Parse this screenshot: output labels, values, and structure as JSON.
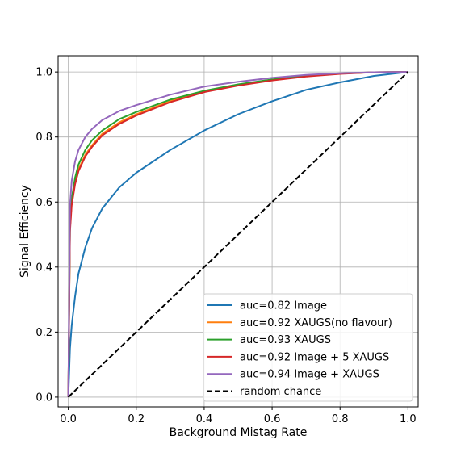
{
  "chart_data": {
    "type": "line",
    "title": "",
    "xlabel": "Background Mistag Rate",
    "ylabel": "Signal Efficiency",
    "xlim": [
      -0.03,
      1.03
    ],
    "ylim": [
      -0.03,
      1.05
    ],
    "x_ticks": [
      0.0,
      0.2,
      0.4,
      0.6,
      0.8,
      1.0
    ],
    "y_ticks": [
      0.0,
      0.2,
      0.4,
      0.6,
      0.8,
      1.0
    ],
    "x_tick_labels": [
      "0.0",
      "0.2",
      "0.4",
      "0.6",
      "0.8",
      "1.0"
    ],
    "y_tick_labels": [
      "0.0",
      "0.2",
      "0.4",
      "0.6",
      "0.8",
      "1.0"
    ],
    "grid": true,
    "legend_position": "lower-right",
    "x": [
      0.0,
      0.005,
      0.01,
      0.02,
      0.03,
      0.05,
      0.07,
      0.1,
      0.15,
      0.2,
      0.3,
      0.4,
      0.5,
      0.6,
      0.7,
      0.8,
      0.9,
      1.0
    ],
    "series": [
      {
        "name": "auc=0.82 Image",
        "color": "#1f77b4",
        "dash": "solid",
        "values": [
          0.0,
          0.15,
          0.22,
          0.31,
          0.38,
          0.46,
          0.52,
          0.58,
          0.645,
          0.69,
          0.76,
          0.82,
          0.87,
          0.91,
          0.945,
          0.968,
          0.988,
          1.0
        ]
      },
      {
        "name": "auc=0.92 XAUGS(no flavour)",
        "color": "#ff7f0e",
        "dash": "solid",
        "values": [
          0.0,
          0.52,
          0.6,
          0.665,
          0.7,
          0.745,
          0.775,
          0.81,
          0.845,
          0.87,
          0.91,
          0.94,
          0.96,
          0.975,
          0.987,
          0.995,
          0.999,
          1.0
        ]
      },
      {
        "name": "auc=0.93 XAUGS",
        "color": "#2ca02c",
        "dash": "solid",
        "values": [
          0.0,
          0.53,
          0.61,
          0.675,
          0.715,
          0.76,
          0.79,
          0.82,
          0.855,
          0.877,
          0.915,
          0.942,
          0.962,
          0.977,
          0.988,
          0.995,
          0.999,
          1.0
        ]
      },
      {
        "name": "auc=0.92 Image + 5 XAUGS",
        "color": "#d62728",
        "dash": "solid",
        "values": [
          0.0,
          0.51,
          0.59,
          0.655,
          0.695,
          0.74,
          0.77,
          0.805,
          0.84,
          0.866,
          0.907,
          0.938,
          0.958,
          0.974,
          0.986,
          0.994,
          0.999,
          1.0
        ]
      },
      {
        "name": "auc=0.94 Image + XAUGS",
        "color": "#9467bd",
        "dash": "solid",
        "values": [
          0.0,
          0.59,
          0.665,
          0.725,
          0.76,
          0.8,
          0.825,
          0.852,
          0.88,
          0.898,
          0.93,
          0.955,
          0.97,
          0.982,
          0.991,
          0.996,
          0.999,
          1.0
        ]
      },
      {
        "name": "random chance",
        "color": "#000000",
        "dash": "dashed",
        "values": [
          0.0,
          0.005,
          0.01,
          0.02,
          0.03,
          0.05,
          0.07,
          0.1,
          0.15,
          0.2,
          0.3,
          0.4,
          0.5,
          0.6,
          0.7,
          0.8,
          0.9,
          1.0
        ]
      }
    ]
  }
}
